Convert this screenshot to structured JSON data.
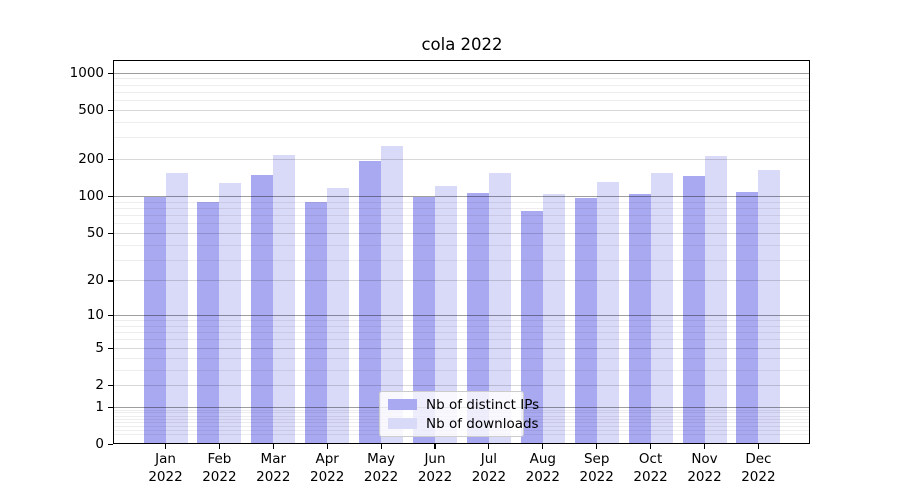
{
  "chart_data": {
    "type": "bar",
    "title": "cola 2022",
    "categories": [
      "Jan 2022",
      "Feb 2022",
      "Mar 2022",
      "Apr 2022",
      "May 2022",
      "Jun 2022",
      "Jul 2022",
      "Aug 2022",
      "Sep 2022",
      "Oct 2022",
      "Nov 2022",
      "Dec 2022"
    ],
    "series": [
      {
        "name": "Nb of distinct IPs",
        "color": "#a9a9f1",
        "values": [
          99,
          90,
          148,
          89,
          192,
          98,
          106,
          76,
          96,
          104,
          145,
          108
        ]
      },
      {
        "name": "Nb of downloads",
        "color": "#d9d9f8",
        "values": [
          153,
          128,
          215,
          116,
          255,
          121,
          153,
          104,
          131,
          153,
          213,
          162
        ]
      }
    ],
    "xlabel": "",
    "ylabel": "",
    "yscale": "log1p",
    "ylim": [
      0,
      1245
    ],
    "y_ticks": [
      0,
      1,
      2,
      5,
      10,
      20,
      50,
      100,
      200,
      500,
      1000
    ],
    "y_minor_ticks": [
      0.2,
      0.3,
      0.4,
      0.5,
      0.6,
      0.7,
      0.8,
      0.9,
      3,
      4,
      6,
      7,
      8,
      9,
      30,
      40,
      60,
      70,
      80,
      90,
      300,
      400,
      600,
      700,
      800,
      900
    ],
    "grid": "on",
    "legend": {
      "position": "lower-center-inside",
      "entries": [
        "Nb of distinct IPs",
        "Nb of downloads"
      ]
    }
  }
}
